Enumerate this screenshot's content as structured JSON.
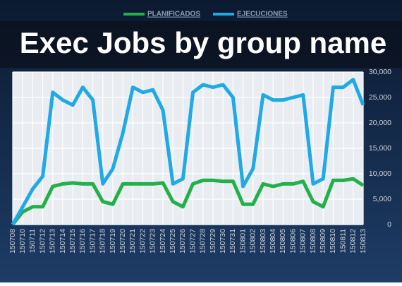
{
  "chart_data": {
    "type": "line",
    "title": "Exec Jobs by group name",
    "categories": [
      "150708",
      "150710",
      "150711",
      "150712",
      "150713",
      "150714",
      "150715",
      "150716",
      "150717",
      "150718",
      "150719",
      "150720",
      "150721",
      "150722",
      "150723",
      "150724",
      "150725",
      "150726",
      "150727",
      "150728",
      "150729",
      "150730",
      "150731",
      "150801",
      "150802",
      "150803",
      "150804",
      "150805",
      "150806",
      "150807",
      "150808",
      "150809",
      "150810",
      "150811",
      "150812",
      "150813"
    ],
    "series": [
      {
        "name": "PLANIFICADOS",
        "color": "#22b04a",
        "values": [
          0,
          2500,
          3500,
          3500,
          7500,
          8000,
          8200,
          8000,
          8000,
          4500,
          4000,
          8000,
          8000,
          8000,
          8000,
          8200,
          4500,
          3500,
          8000,
          8700,
          8700,
          8500,
          8500,
          4000,
          4000,
          8000,
          7500,
          8000,
          8000,
          8500,
          4500,
          3500,
          8700,
          8700,
          9000,
          7700
        ]
      },
      {
        "name": "EJECUCIONES",
        "color": "#1fa9e6",
        "values": [
          0,
          3500,
          7000,
          9500,
          26000,
          24500,
          23500,
          27000,
          24500,
          8000,
          11000,
          18000,
          27000,
          26000,
          26500,
          22500,
          8000,
          9000,
          26000,
          27500,
          27000,
          27500,
          25000,
          7500,
          11000,
          25500,
          24500,
          24500,
          25000,
          25500,
          8000,
          9000,
          27000,
          27000,
          28500,
          23500
        ]
      }
    ],
    "ylim": [
      0,
      30000
    ],
    "yticks": [
      0,
      {
        "value": 5000,
        "label": "5,000"
      },
      {
        "value": 10000,
        "label": "10,000"
      },
      {
        "value": 15000,
        "label": "15,000"
      },
      {
        "value": 20000,
        "label": "20,000"
      },
      {
        "value": 25000,
        "label": "25,000"
      },
      {
        "value": 30000,
        "label": "30,000"
      }
    ],
    "grid": true
  }
}
